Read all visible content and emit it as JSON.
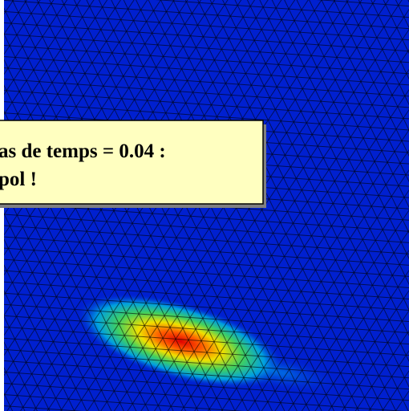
{
  "callout": {
    "lines": [
      "as de temps = 0.04 :",
      "pol !"
    ]
  }
}
